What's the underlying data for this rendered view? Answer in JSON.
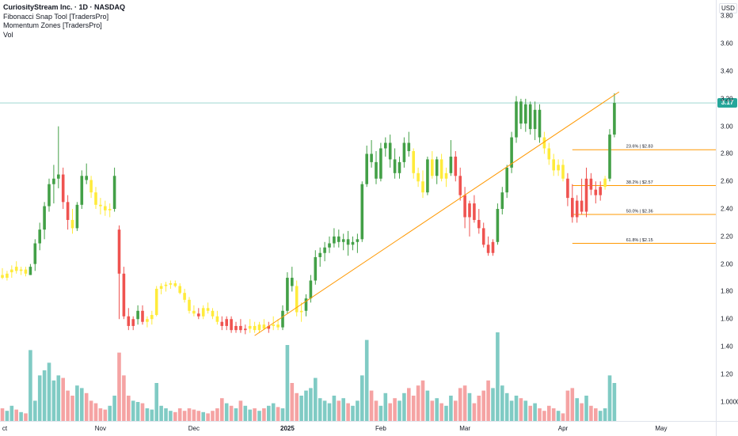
{
  "legend": {
    "title": "CuriosityStream Inc. · 1D · NASDAQ",
    "indicator1": "Fibonacci Snap Tool [TradersPro]",
    "indicator2": "Momentum Zones [TradersPro]",
    "indicator3": "Vol"
  },
  "yaxis": {
    "currency": "USD",
    "last_price_label": "3.17"
  },
  "colors": {
    "up": "#43a047",
    "down": "#ef5350",
    "neutral": "#ffeb3b",
    "fib": "#ff9800",
    "vol_up": "#80cbc4",
    "vol_down": "#f5a3a3",
    "price_line": "#26a69a"
  },
  "chart_data": {
    "type": "candlestick",
    "symbol": "CuriosityStream Inc.",
    "interval": "1D",
    "exchange": "NASDAQ",
    "currency": "USD",
    "ylim": [
      0.86,
      3.86
    ],
    "y_ticks": [
      "3.80",
      "3.60",
      "3.40",
      "3.20",
      "3.00",
      "2.80",
      "2.60",
      "2.40",
      "2.20",
      "2.00",
      "1.80",
      "1.60",
      "1.40",
      "1.20",
      "1.0000"
    ],
    "x_ticks": [
      {
        "label": "ct",
        "bold": false,
        "index": 0
      },
      {
        "label": "Nov",
        "bold": false,
        "index": 21
      },
      {
        "label": "Dec",
        "bold": false,
        "index": 41
      },
      {
        "label": "2025",
        "bold": true,
        "index": 61
      },
      {
        "label": "Feb",
        "bold": false,
        "index": 81
      },
      {
        "label": "Mar",
        "bold": false,
        "index": 99
      },
      {
        "label": "Apr",
        "bold": false,
        "index": 120
      },
      {
        "label": "May",
        "bold": false,
        "index": 141
      }
    ],
    "last_price": 3.17,
    "fib_levels": [
      {
        "label": "23.6% | $2.83",
        "price": 2.83
      },
      {
        "label": "38.2% | $2.57",
        "price": 2.57
      },
      {
        "label": "50.0% | $2.36",
        "price": 2.36
      },
      {
        "label": "61.8% | $2.15",
        "price": 2.15
      }
    ],
    "fib_start_index": 122,
    "trendline": [
      {
        "index": 54,
        "price": 1.48
      },
      {
        "index": 132,
        "price": 3.25
      }
    ],
    "candles": [
      {
        "o": 1.92,
        "h": 1.97,
        "l": 1.89,
        "c": 1.9,
        "v": 0.1,
        "z": "n"
      },
      {
        "o": 1.9,
        "h": 1.95,
        "l": 1.88,
        "c": 1.93,
        "v": 0.08,
        "z": "n"
      },
      {
        "o": 1.94,
        "h": 1.99,
        "l": 1.9,
        "c": 1.96,
        "v": 0.12,
        "z": "n"
      },
      {
        "o": 1.98,
        "h": 2.02,
        "l": 1.93,
        "c": 1.95,
        "v": 0.09,
        "z": "n"
      },
      {
        "o": 1.95,
        "h": 1.98,
        "l": 1.92,
        "c": 1.96,
        "v": 0.07,
        "z": "n"
      },
      {
        "o": 1.96,
        "h": 1.98,
        "l": 1.91,
        "c": 1.93,
        "v": 0.06,
        "z": "n"
      },
      {
        "o": 1.92,
        "h": 2.0,
        "l": 1.92,
        "c": 1.98,
        "v": 0.56,
        "z": "u"
      },
      {
        "o": 2.0,
        "h": 2.18,
        "l": 1.95,
        "c": 2.15,
        "v": 0.16,
        "z": "u"
      },
      {
        "o": 2.15,
        "h": 2.3,
        "l": 2.1,
        "c": 2.25,
        "v": 0.36,
        "z": "u"
      },
      {
        "o": 2.25,
        "h": 2.45,
        "l": 2.18,
        "c": 2.42,
        "v": 0.4,
        "z": "u"
      },
      {
        "o": 2.42,
        "h": 2.62,
        "l": 2.38,
        "c": 2.58,
        "v": 0.46,
        "z": "u"
      },
      {
        "o": 2.58,
        "h": 2.72,
        "l": 2.44,
        "c": 2.62,
        "v": 0.32,
        "z": "u"
      },
      {
        "o": 2.62,
        "h": 3.0,
        "l": 2.55,
        "c": 2.65,
        "v": 0.36,
        "z": "u"
      },
      {
        "o": 2.65,
        "h": 2.7,
        "l": 2.4,
        "c": 2.45,
        "v": 0.34,
        "z": "d"
      },
      {
        "o": 2.45,
        "h": 2.5,
        "l": 2.25,
        "c": 2.32,
        "v": 0.24,
        "z": "d"
      },
      {
        "o": 2.32,
        "h": 2.4,
        "l": 2.22,
        "c": 2.26,
        "v": 0.2,
        "z": "n"
      },
      {
        "o": 2.26,
        "h": 2.45,
        "l": 2.24,
        "c": 2.43,
        "v": 0.28,
        "z": "u"
      },
      {
        "o": 2.43,
        "h": 2.68,
        "l": 2.4,
        "c": 2.64,
        "v": 0.26,
        "z": "u"
      },
      {
        "o": 2.64,
        "h": 2.73,
        "l": 2.58,
        "c": 2.61,
        "v": 0.22,
        "z": "u"
      },
      {
        "o": 2.61,
        "h": 2.64,
        "l": 2.48,
        "c": 2.52,
        "v": 0.16,
        "z": "n"
      },
      {
        "o": 2.52,
        "h": 2.56,
        "l": 2.4,
        "c": 2.43,
        "v": 0.14,
        "z": "n"
      },
      {
        "o": 2.43,
        "h": 2.48,
        "l": 2.36,
        "c": 2.42,
        "v": 0.1,
        "z": "n"
      },
      {
        "o": 2.42,
        "h": 2.46,
        "l": 2.35,
        "c": 2.39,
        "v": 0.09,
        "z": "n"
      },
      {
        "o": 2.39,
        "h": 2.44,
        "l": 2.34,
        "c": 2.4,
        "v": 0.12,
        "z": "n"
      },
      {
        "o": 2.4,
        "h": 2.7,
        "l": 2.38,
        "c": 2.64,
        "v": 0.2,
        "z": "u"
      },
      {
        "o": 2.25,
        "h": 2.28,
        "l": 1.6,
        "c": 1.93,
        "v": 0.54,
        "z": "d"
      },
      {
        "o": 1.93,
        "h": 1.98,
        "l": 1.6,
        "c": 1.62,
        "v": 0.36,
        "z": "d"
      },
      {
        "o": 1.62,
        "h": 1.68,
        "l": 1.52,
        "c": 1.55,
        "v": 0.2,
        "z": "d"
      },
      {
        "o": 1.55,
        "h": 1.62,
        "l": 1.52,
        "c": 1.6,
        "v": 0.16,
        "z": "d"
      },
      {
        "o": 1.6,
        "h": 1.7,
        "l": 1.56,
        "c": 1.66,
        "v": 0.15,
        "z": "u"
      },
      {
        "o": 1.66,
        "h": 1.7,
        "l": 1.56,
        "c": 1.58,
        "v": 0.14,
        "z": "d"
      },
      {
        "o": 1.58,
        "h": 1.62,
        "l": 1.54,
        "c": 1.6,
        "v": 0.1,
        "z": "n"
      },
      {
        "o": 1.6,
        "h": 1.66,
        "l": 1.56,
        "c": 1.63,
        "v": 0.09,
        "z": "n"
      },
      {
        "o": 1.63,
        "h": 1.84,
        "l": 1.62,
        "c": 1.82,
        "v": 0.3,
        "z": "n"
      },
      {
        "o": 1.82,
        "h": 1.86,
        "l": 1.78,
        "c": 1.84,
        "v": 0.12,
        "z": "n"
      },
      {
        "o": 1.84,
        "h": 1.87,
        "l": 1.8,
        "c": 1.85,
        "v": 0.1,
        "z": "n"
      },
      {
        "o": 1.85,
        "h": 1.88,
        "l": 1.82,
        "c": 1.86,
        "v": 0.08,
        "z": "n"
      },
      {
        "o": 1.86,
        "h": 1.88,
        "l": 1.83,
        "c": 1.84,
        "v": 0.07,
        "z": "n"
      },
      {
        "o": 1.84,
        "h": 1.86,
        "l": 1.78,
        "c": 1.79,
        "v": 0.1,
        "z": "n"
      },
      {
        "o": 1.79,
        "h": 1.82,
        "l": 1.72,
        "c": 1.74,
        "v": 0.08,
        "z": "n"
      },
      {
        "o": 1.74,
        "h": 1.76,
        "l": 1.64,
        "c": 1.66,
        "v": 0.1,
        "z": "n"
      },
      {
        "o": 1.66,
        "h": 1.7,
        "l": 1.62,
        "c": 1.64,
        "v": 0.09,
        "z": "n"
      },
      {
        "o": 1.64,
        "h": 1.68,
        "l": 1.6,
        "c": 1.62,
        "v": 0.08,
        "z": "d"
      },
      {
        "o": 1.62,
        "h": 1.7,
        "l": 1.6,
        "c": 1.68,
        "v": 0.07,
        "z": "n"
      },
      {
        "o": 1.68,
        "h": 1.72,
        "l": 1.64,
        "c": 1.66,
        "v": 0.06,
        "z": "n"
      },
      {
        "o": 1.66,
        "h": 1.68,
        "l": 1.6,
        "c": 1.62,
        "v": 0.08,
        "z": "n"
      },
      {
        "o": 1.62,
        "h": 1.66,
        "l": 1.56,
        "c": 1.58,
        "v": 0.1,
        "z": "n"
      },
      {
        "o": 1.58,
        "h": 1.62,
        "l": 1.52,
        "c": 1.55,
        "v": 0.18,
        "z": "d"
      },
      {
        "o": 1.55,
        "h": 1.62,
        "l": 1.52,
        "c": 1.6,
        "v": 0.14,
        "z": "d"
      },
      {
        "o": 1.6,
        "h": 1.62,
        "l": 1.5,
        "c": 1.52,
        "v": 0.12,
        "z": "d"
      },
      {
        "o": 1.52,
        "h": 1.58,
        "l": 1.5,
        "c": 1.55,
        "v": 0.1,
        "z": "d"
      },
      {
        "o": 1.55,
        "h": 1.6,
        "l": 1.5,
        "c": 1.52,
        "v": 0.16,
        "z": "d"
      },
      {
        "o": 1.52,
        "h": 1.56,
        "l": 1.49,
        "c": 1.53,
        "v": 0.12,
        "z": "d"
      },
      {
        "o": 1.53,
        "h": 1.6,
        "l": 1.5,
        "c": 1.55,
        "v": 0.09,
        "z": "n"
      },
      {
        "o": 1.55,
        "h": 1.58,
        "l": 1.5,
        "c": 1.52,
        "v": 0.1,
        "z": "n"
      },
      {
        "o": 1.52,
        "h": 1.58,
        "l": 1.5,
        "c": 1.56,
        "v": 0.08,
        "z": "n"
      },
      {
        "o": 1.56,
        "h": 1.6,
        "l": 1.52,
        "c": 1.53,
        "v": 0.1,
        "z": "n"
      },
      {
        "o": 1.53,
        "h": 1.58,
        "l": 1.5,
        "c": 1.55,
        "v": 0.12,
        "z": "d"
      },
      {
        "o": 1.55,
        "h": 1.62,
        "l": 1.52,
        "c": 1.56,
        "v": 0.14,
        "z": "n"
      },
      {
        "o": 1.56,
        "h": 1.6,
        "l": 1.52,
        "c": 1.54,
        "v": 0.11,
        "z": "n"
      },
      {
        "o": 1.54,
        "h": 1.7,
        "l": 1.52,
        "c": 1.66,
        "v": 0.1,
        "z": "u"
      },
      {
        "o": 1.66,
        "h": 1.94,
        "l": 1.64,
        "c": 1.9,
        "v": 0.6,
        "z": "u"
      },
      {
        "o": 1.9,
        "h": 1.98,
        "l": 1.8,
        "c": 1.84,
        "v": 0.3,
        "z": "u"
      },
      {
        "o": 1.84,
        "h": 1.88,
        "l": 1.62,
        "c": 1.65,
        "v": 0.22,
        "z": "n"
      },
      {
        "o": 1.65,
        "h": 1.72,
        "l": 1.58,
        "c": 1.66,
        "v": 0.2,
        "z": "n"
      },
      {
        "o": 1.66,
        "h": 1.78,
        "l": 1.62,
        "c": 1.75,
        "v": 0.24,
        "z": "u"
      },
      {
        "o": 1.75,
        "h": 1.92,
        "l": 1.72,
        "c": 1.88,
        "v": 0.26,
        "z": "u"
      },
      {
        "o": 1.88,
        "h": 2.1,
        "l": 1.85,
        "c": 2.05,
        "v": 0.34,
        "z": "u"
      },
      {
        "o": 2.05,
        "h": 2.12,
        "l": 1.98,
        "c": 2.08,
        "v": 0.18,
        "z": "u"
      },
      {
        "o": 2.08,
        "h": 2.16,
        "l": 2.02,
        "c": 2.12,
        "v": 0.16,
        "z": "u"
      },
      {
        "o": 2.12,
        "h": 2.2,
        "l": 2.08,
        "c": 2.15,
        "v": 0.14,
        "z": "u"
      },
      {
        "o": 2.15,
        "h": 2.26,
        "l": 2.12,
        "c": 2.2,
        "v": 0.2,
        "z": "u"
      },
      {
        "o": 2.2,
        "h": 2.25,
        "l": 2.12,
        "c": 2.16,
        "v": 0.16,
        "z": "u"
      },
      {
        "o": 2.16,
        "h": 2.22,
        "l": 2.1,
        "c": 2.18,
        "v": 0.18,
        "z": "u"
      },
      {
        "o": 2.18,
        "h": 2.24,
        "l": 2.06,
        "c": 2.14,
        "v": 0.14,
        "z": "u"
      },
      {
        "o": 2.14,
        "h": 2.2,
        "l": 2.1,
        "c": 2.16,
        "v": 0.12,
        "z": "u"
      },
      {
        "o": 2.16,
        "h": 2.22,
        "l": 2.08,
        "c": 2.18,
        "v": 0.16,
        "z": "u"
      },
      {
        "o": 2.18,
        "h": 2.6,
        "l": 2.16,
        "c": 2.58,
        "v": 0.36,
        "z": "u"
      },
      {
        "o": 2.58,
        "h": 2.86,
        "l": 2.56,
        "c": 2.8,
        "v": 0.64,
        "z": "u"
      },
      {
        "o": 2.8,
        "h": 2.9,
        "l": 2.7,
        "c": 2.74,
        "v": 0.24,
        "z": "u"
      },
      {
        "o": 2.74,
        "h": 2.82,
        "l": 2.58,
        "c": 2.62,
        "v": 0.16,
        "z": "u"
      },
      {
        "o": 2.62,
        "h": 2.88,
        "l": 2.6,
        "c": 2.84,
        "v": 0.12,
        "z": "u"
      },
      {
        "o": 2.84,
        "h": 2.92,
        "l": 2.78,
        "c": 2.88,
        "v": 0.22,
        "z": "u"
      },
      {
        "o": 2.88,
        "h": 2.94,
        "l": 2.7,
        "c": 2.76,
        "v": 0.14,
        "z": "u"
      },
      {
        "o": 2.76,
        "h": 2.84,
        "l": 2.62,
        "c": 2.66,
        "v": 0.18,
        "z": "u"
      },
      {
        "o": 2.66,
        "h": 2.78,
        "l": 2.62,
        "c": 2.74,
        "v": 0.16,
        "z": "u"
      },
      {
        "o": 2.74,
        "h": 2.92,
        "l": 2.7,
        "c": 2.88,
        "v": 0.22,
        "z": "u"
      },
      {
        "o": 2.88,
        "h": 2.96,
        "l": 2.78,
        "c": 2.82,
        "v": 0.26,
        "z": "u"
      },
      {
        "o": 2.82,
        "h": 2.84,
        "l": 2.62,
        "c": 2.66,
        "v": 0.2,
        "z": "n"
      },
      {
        "o": 2.66,
        "h": 2.7,
        "l": 2.56,
        "c": 2.6,
        "v": 0.28,
        "z": "n"
      },
      {
        "o": 2.6,
        "h": 2.68,
        "l": 2.48,
        "c": 2.52,
        "v": 0.32,
        "z": "n"
      },
      {
        "o": 2.52,
        "h": 2.78,
        "l": 2.5,
        "c": 2.76,
        "v": 0.24,
        "z": "u"
      },
      {
        "o": 2.76,
        "h": 2.82,
        "l": 2.62,
        "c": 2.64,
        "v": 0.16,
        "z": "n"
      },
      {
        "o": 2.64,
        "h": 2.78,
        "l": 2.58,
        "c": 2.76,
        "v": 0.18,
        "z": "u"
      },
      {
        "o": 2.76,
        "h": 2.8,
        "l": 2.6,
        "c": 2.62,
        "v": 0.14,
        "z": "n"
      },
      {
        "o": 2.62,
        "h": 2.7,
        "l": 2.56,
        "c": 2.66,
        "v": 0.12,
        "z": "n"
      },
      {
        "o": 2.66,
        "h": 2.9,
        "l": 2.64,
        "c": 2.78,
        "v": 0.2,
        "z": "u"
      },
      {
        "o": 2.78,
        "h": 2.82,
        "l": 2.6,
        "c": 2.64,
        "v": 0.16,
        "z": "d"
      },
      {
        "o": 2.64,
        "h": 2.7,
        "l": 2.46,
        "c": 2.5,
        "v": 0.26,
        "z": "d"
      },
      {
        "o": 2.5,
        "h": 2.56,
        "l": 2.26,
        "c": 2.34,
        "v": 0.28,
        "z": "d"
      },
      {
        "o": 2.34,
        "h": 2.46,
        "l": 2.2,
        "c": 2.44,
        "v": 0.22,
        "z": "d"
      },
      {
        "o": 2.44,
        "h": 2.5,
        "l": 2.3,
        "c": 2.32,
        "v": 0.14,
        "z": "d"
      },
      {
        "o": 2.32,
        "h": 2.4,
        "l": 2.22,
        "c": 2.26,
        "v": 0.2,
        "z": "d"
      },
      {
        "o": 2.26,
        "h": 2.3,
        "l": 2.12,
        "c": 2.14,
        "v": 0.24,
        "z": "d"
      },
      {
        "o": 2.14,
        "h": 2.2,
        "l": 2.06,
        "c": 2.08,
        "v": 0.32,
        "z": "d"
      },
      {
        "o": 2.08,
        "h": 2.18,
        "l": 2.06,
        "c": 2.16,
        "v": 0.26,
        "z": "d"
      },
      {
        "o": 2.16,
        "h": 2.44,
        "l": 2.14,
        "c": 2.4,
        "v": 0.7,
        "z": "u"
      },
      {
        "o": 2.4,
        "h": 2.56,
        "l": 2.36,
        "c": 2.52,
        "v": 0.28,
        "z": "u"
      },
      {
        "o": 2.52,
        "h": 2.72,
        "l": 2.48,
        "c": 2.7,
        "v": 0.22,
        "z": "u"
      },
      {
        "o": 2.7,
        "h": 2.96,
        "l": 2.66,
        "c": 2.92,
        "v": 0.16,
        "z": "u"
      },
      {
        "o": 2.92,
        "h": 3.22,
        "l": 2.88,
        "c": 3.18,
        "v": 0.2,
        "z": "u"
      },
      {
        "o": 3.18,
        "h": 3.2,
        "l": 2.98,
        "c": 3.02,
        "v": 0.18,
        "z": "u"
      },
      {
        "o": 3.02,
        "h": 3.2,
        "l": 2.96,
        "c": 3.16,
        "v": 0.16,
        "z": "u"
      },
      {
        "o": 3.16,
        "h": 3.18,
        "l": 2.94,
        "c": 2.98,
        "v": 0.12,
        "z": "u"
      },
      {
        "o": 2.98,
        "h": 3.18,
        "l": 2.9,
        "c": 3.12,
        "v": 0.14,
        "z": "u"
      },
      {
        "o": 3.12,
        "h": 3.16,
        "l": 2.88,
        "c": 2.92,
        "v": 0.1,
        "z": "u"
      },
      {
        "o": 2.92,
        "h": 2.96,
        "l": 2.8,
        "c": 2.84,
        "v": 0.08,
        "z": "n"
      },
      {
        "o": 2.84,
        "h": 2.88,
        "l": 2.72,
        "c": 2.76,
        "v": 0.12,
        "z": "n"
      },
      {
        "o": 2.76,
        "h": 2.8,
        "l": 2.64,
        "c": 2.68,
        "v": 0.1,
        "z": "n"
      },
      {
        "o": 2.68,
        "h": 2.76,
        "l": 2.64,
        "c": 2.72,
        "v": 0.08,
        "z": "n"
      },
      {
        "o": 2.72,
        "h": 2.76,
        "l": 2.6,
        "c": 2.62,
        "v": 0.06,
        "z": "n"
      },
      {
        "o": 2.62,
        "h": 2.66,
        "l": 2.42,
        "c": 2.48,
        "v": 0.24,
        "z": "d"
      },
      {
        "o": 2.48,
        "h": 2.58,
        "l": 2.3,
        "c": 2.34,
        "v": 0.26,
        "z": "d"
      },
      {
        "o": 2.34,
        "h": 2.5,
        "l": 2.3,
        "c": 2.46,
        "v": 0.18,
        "z": "d"
      },
      {
        "o": 2.46,
        "h": 2.62,
        "l": 2.36,
        "c": 2.38,
        "v": 0.14,
        "z": "d"
      },
      {
        "o": 2.38,
        "h": 2.7,
        "l": 2.34,
        "c": 2.62,
        "v": 0.2,
        "z": "d"
      },
      {
        "o": 2.62,
        "h": 2.66,
        "l": 2.5,
        "c": 2.54,
        "v": 0.12,
        "z": "d"
      },
      {
        "o": 2.54,
        "h": 2.6,
        "l": 2.44,
        "c": 2.5,
        "v": 0.1,
        "z": "d"
      },
      {
        "o": 2.5,
        "h": 2.6,
        "l": 2.46,
        "c": 2.56,
        "v": 0.08,
        "z": "d"
      },
      {
        "o": 2.56,
        "h": 2.64,
        "l": 2.54,
        "c": 2.62,
        "v": 0.1,
        "z": "n"
      },
      {
        "o": 2.62,
        "h": 2.98,
        "l": 2.6,
        "c": 2.94,
        "v": 0.36,
        "z": "u"
      },
      {
        "o": 2.94,
        "h": 3.24,
        "l": 2.92,
        "c": 3.17,
        "v": 0.3,
        "z": "u"
      }
    ]
  }
}
